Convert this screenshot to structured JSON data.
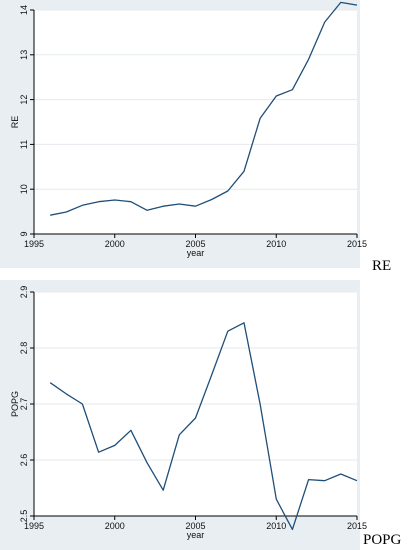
{
  "chart_data": [
    {
      "type": "line",
      "xlabel": "year",
      "ylabel": "RE",
      "xlim": [
        1995,
        2015
      ],
      "ylim": [
        9,
        14
      ],
      "xticks": [
        1995,
        2000,
        2005,
        2010,
        2015
      ],
      "yticks": [
        9,
        10,
        11,
        12,
        13,
        14
      ],
      "grid": "horizontal",
      "color": "#1f4e79",
      "caption": "RE",
      "x": [
        1996,
        1997,
        1998,
        1999,
        2000,
        2001,
        2002,
        2003,
        2004,
        2005,
        2006,
        2007,
        2008,
        2009,
        2010,
        2011,
        2012,
        2013,
        2014,
        2015
      ],
      "y": [
        9.42,
        9.49,
        9.64,
        9.72,
        9.76,
        9.72,
        9.53,
        9.62,
        9.67,
        9.62,
        9.77,
        9.96,
        10.4,
        11.58,
        12.08,
        12.22,
        12.9,
        13.73,
        14.17,
        14.11
      ]
    },
    {
      "type": "line",
      "xlabel": "year",
      "ylabel": "POPG",
      "xlim": [
        1995,
        2015
      ],
      "ylim": [
        2.5,
        2.9
      ],
      "xticks": [
        1995,
        2000,
        2005,
        2010,
        2015
      ],
      "yticks": [
        2.5,
        2.6,
        2.7,
        2.8,
        2.9
      ],
      "grid": "horizontal",
      "color": "#1f4e79",
      "caption": "POPG",
      "x": [
        1996,
        1997,
        1998,
        1999,
        2000,
        2001,
        2002,
        2003,
        2004,
        2005,
        2006,
        2007,
        2008,
        2009,
        2010,
        2011,
        2012,
        2013,
        2014,
        2015
      ],
      "y": [
        2.738,
        2.718,
        2.7,
        2.614,
        2.626,
        2.653,
        2.595,
        2.546,
        2.645,
        2.675,
        2.752,
        2.83,
        2.845,
        2.7,
        2.53,
        2.476,
        2.565,
        2.563,
        2.575,
        2.563
      ]
    }
  ]
}
